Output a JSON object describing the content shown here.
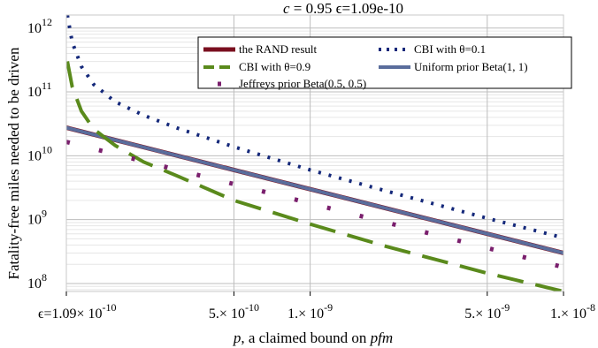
{
  "chart_data": {
    "type": "line",
    "title": "c = 0.95  ϵ=1.09e-10",
    "xlabel_parts": {
      "p": "p",
      "middle": ", a claimed bound on ",
      "pfm": "pfm"
    },
    "ylabel": "Fatality-free miles needed to be driven",
    "x_scale": "log",
    "y_scale": "log",
    "xlim": [
      1.09e-10,
      1e-08
    ],
    "ylim": [
      75000000.0,
      1600000000000.0
    ],
    "grid": true,
    "legend_position": "top-right",
    "x_ticks": [
      {
        "value": 1.09e-10,
        "mantissa": "ϵ=1.09",
        "exp": "-10"
      },
      {
        "value": 5e-10,
        "mantissa": "5.",
        "exp": "-10"
      },
      {
        "value": 1e-09,
        "mantissa": "1.",
        "exp": "-9"
      },
      {
        "value": 5e-09,
        "mantissa": "5.",
        "exp": "-9"
      },
      {
        "value": 1e-08,
        "mantissa": "1.",
        "exp": "-8"
      }
    ],
    "y_ticks": [
      {
        "value": 100000000.0,
        "exp": "8"
      },
      {
        "value": 1000000000.0,
        "exp": "9"
      },
      {
        "value": 10000000000.0,
        "exp": "10"
      },
      {
        "value": 100000000000.0,
        "exp": "11"
      },
      {
        "value": 1000000000000.0,
        "exp": "12"
      }
    ],
    "series": [
      {
        "name": "the RAND result",
        "color": "#7a0f1f",
        "style": "solid",
        "width": 5,
        "x": [
          1.09e-10,
          2e-10,
          5e-10,
          1e-09,
          2e-09,
          5e-09,
          1e-08
        ],
        "y": [
          27500000000.0,
          15000000000.0,
          6000000000.0,
          3000000000.0,
          1500000000.0,
          600000000.0,
          300000000.0
        ]
      },
      {
        "name": "Uniform prior Beta(1, 1)",
        "color": "#5a6d9c",
        "style": "solid",
        "width": 4,
        "x": [
          1.09e-10,
          2e-10,
          5e-10,
          1e-09,
          2e-09,
          5e-09,
          1e-08
        ],
        "y": [
          27500000000.0,
          15000000000.0,
          6000000000.0,
          3000000000.0,
          1500000000.0,
          600000000.0,
          300000000.0
        ]
      },
      {
        "name": "CBI with θ=0.1",
        "color": "#14287a",
        "style": "dotted",
        "width": 4,
        "x": [
          1.1e-10,
          1.15e-10,
          1.25e-10,
          1.4e-10,
          1.7e-10,
          2.2e-10,
          3e-10,
          5e-10,
          1e-09,
          2e-09,
          5e-09,
          1e-08
        ],
        "y": [
          1600000000000.0,
          600000000000.0,
          250000000000.0,
          130000000000.0,
          70000000000.0,
          43000000000.0,
          27000000000.0,
          13800000000.0,
          6000000000.0,
          2800000000.0,
          1050000000.0,
          520000000.0
        ]
      },
      {
        "name": "CBI with θ=0.9",
        "color": "#5a8a1c",
        "style": "dashed",
        "width": 4,
        "x": [
          1.1e-10,
          1.15e-10,
          1.25e-10,
          1.4e-10,
          1.7e-10,
          2.2e-10,
          3e-10,
          5e-10,
          1e-09,
          2e-09,
          5e-09,
          1e-08
        ],
        "y": [
          300000000000.0,
          120000000000.0,
          50000000000.0,
          26000000000.0,
          14500000000.0,
          8000000000.0,
          4800000000.0,
          2000000000.0,
          850000000.0,
          380000000.0,
          145000000.0,
          75000000.0
        ]
      },
      {
        "name": "Jeffreys prior Beta(0.5, 0.5)",
        "color": "#7a1f6d",
        "style": "dotted-sparse",
        "width": 5,
        "x": [
          1.09e-10,
          2e-10,
          5e-10,
          1e-09,
          2e-09,
          5e-09,
          1e-08
        ],
        "y": [
          16500000000.0,
          9000000000.0,
          3600000000.0,
          1800000000.0,
          900000000.0,
          360000000.0,
          180000000.0
        ]
      }
    ]
  }
}
